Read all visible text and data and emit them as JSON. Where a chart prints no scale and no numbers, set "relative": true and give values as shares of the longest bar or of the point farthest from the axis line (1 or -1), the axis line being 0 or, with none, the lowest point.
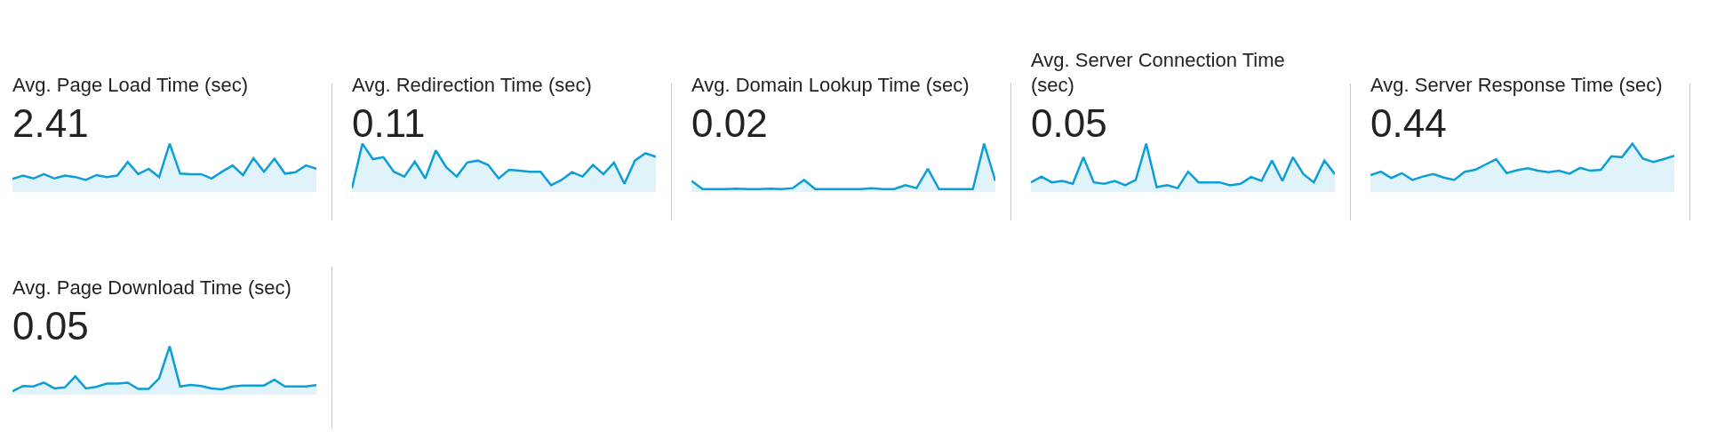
{
  "chart_data": [
    {
      "type": "area",
      "title": "Avg. Page Load Time (sec)",
      "subtitle": "2.41",
      "relative": true,
      "categories": [
        null,
        null,
        null,
        null,
        null,
        null,
        null,
        null,
        null,
        null,
        null,
        null,
        null,
        null,
        null,
        null,
        null,
        null,
        null,
        null,
        null,
        null,
        null,
        null,
        null,
        null,
        null,
        null,
        null,
        null
      ],
      "series": [
        {
          "color": "#0b9ed9",
          "values": [
            0.27,
            0.34,
            0.28,
            0.37,
            0.28,
            0.34,
            0.31,
            0.25,
            0.35,
            0.31,
            0.34,
            0.62,
            0.37,
            0.48,
            0.31,
            1,
            0.38,
            0.37,
            0.37,
            0.28,
            0.42,
            0.55,
            0.35,
            0.7,
            0.42,
            0.69,
            0.38,
            0.41,
            0.55,
            0.48
          ]
        }
      ]
    },
    {
      "type": "area",
      "title": "Avg. Redirection Time (sec)",
      "subtitle": "0.11",
      "relative": true,
      "categories": [
        null,
        null,
        null,
        null,
        null,
        null,
        null,
        null,
        null,
        null,
        null,
        null,
        null,
        null,
        null,
        null,
        null,
        null,
        null,
        null,
        null,
        null,
        null,
        null,
        null,
        null,
        null,
        null,
        null,
        null
      ],
      "series": [
        {
          "color": "#0b9ed9",
          "values": [
            0.08,
            1,
            0.68,
            0.72,
            0.42,
            0.32,
            0.63,
            0.28,
            0.86,
            0.51,
            0.32,
            0.61,
            0.65,
            0.56,
            0.28,
            0.46,
            0.44,
            0.42,
            0.42,
            0.14,
            0.25,
            0.41,
            0.32,
            0.56,
            0.37,
            0.61,
            0.17,
            0.65,
            0.8,
            0.73
          ]
        }
      ]
    },
    {
      "type": "area",
      "title": "Avg. Domain Lookup Time (sec)",
      "subtitle": "0.02",
      "relative": true,
      "categories": [
        null,
        null,
        null,
        null,
        null,
        null,
        null,
        null,
        null,
        null,
        null,
        null,
        null,
        null,
        null,
        null,
        null,
        null,
        null,
        null,
        null,
        null,
        null,
        null,
        null,
        null,
        null,
        null
      ],
      "series": [
        {
          "color": "#0b9ed9",
          "values": [
            0.23,
            0.06,
            0.06,
            0.06,
            0.07,
            0.06,
            0.06,
            0.07,
            0.06,
            0.08,
            0.25,
            0.06,
            0.06,
            0.06,
            0.06,
            0.06,
            0.08,
            0.06,
            0.06,
            0.14,
            0.08,
            0.48,
            0.06,
            0.06,
            0.06,
            0.06,
            1,
            0.23
          ]
        }
      ]
    },
    {
      "type": "area",
      "title": "Avg. Server Connection Time (sec)",
      "subtitle": "0.05",
      "relative": true,
      "categories": [
        null,
        null,
        null,
        null,
        null,
        null,
        null,
        null,
        null,
        null,
        null,
        null,
        null,
        null,
        null,
        null,
        null,
        null,
        null,
        null,
        null,
        null,
        null,
        null,
        null,
        null,
        null,
        null,
        null,
        null
      ],
      "series": [
        {
          "color": "#0b9ed9",
          "values": [
            0.2,
            0.32,
            0.2,
            0.23,
            0.17,
            0.72,
            0.2,
            0.17,
            0.23,
            0.14,
            0.25,
            1,
            0.1,
            0.14,
            0.08,
            0.42,
            0.2,
            0.2,
            0.2,
            0.14,
            0.17,
            0.31,
            0.23,
            0.65,
            0.23,
            0.72,
            0.37,
            0.2,
            0.65,
            0.37
          ]
        }
      ]
    },
    {
      "type": "area",
      "title": "Avg. Server Response Time (sec)",
      "subtitle": "0.44",
      "relative": true,
      "categories": [
        null,
        null,
        null,
        null,
        null,
        null,
        null,
        null,
        null,
        null,
        null,
        null,
        null,
        null,
        null,
        null,
        null,
        null,
        null,
        null,
        null,
        null,
        null,
        null,
        null,
        null,
        null,
        null,
        null,
        null
      ],
      "series": [
        {
          "color": "#0b9ed9",
          "values": [
            0.35,
            0.42,
            0.29,
            0.39,
            0.25,
            0.32,
            0.37,
            0.3,
            0.25,
            0.42,
            0.46,
            0.57,
            0.68,
            0.39,
            0.45,
            0.49,
            0.44,
            0.41,
            0.44,
            0.38,
            0.5,
            0.44,
            0.46,
            0.74,
            0.72,
            1,
            0.69,
            0.62,
            0.68,
            0.75
          ]
        }
      ]
    },
    {
      "type": "area",
      "title": "Avg. Page Download Time (sec)",
      "subtitle": "0.05",
      "relative": true,
      "categories": [
        null,
        null,
        null,
        null,
        null,
        null,
        null,
        null,
        null,
        null,
        null,
        null,
        null,
        null,
        null,
        null,
        null,
        null,
        null,
        null,
        null,
        null,
        null,
        null,
        null,
        null,
        null,
        null,
        null,
        null
      ],
      "series": [
        {
          "color": "#0b9ed9",
          "values": [
            0.07,
            0.18,
            0.17,
            0.25,
            0.13,
            0.15,
            0.38,
            0.13,
            0.16,
            0.23,
            0.23,
            0.25,
            0.12,
            0.12,
            0.34,
            1,
            0.17,
            0.2,
            0.18,
            0.13,
            0.11,
            0.17,
            0.19,
            0.19,
            0.19,
            0.31,
            0.17,
            0.17,
            0.17,
            0.2
          ]
        }
      ]
    }
  ]
}
